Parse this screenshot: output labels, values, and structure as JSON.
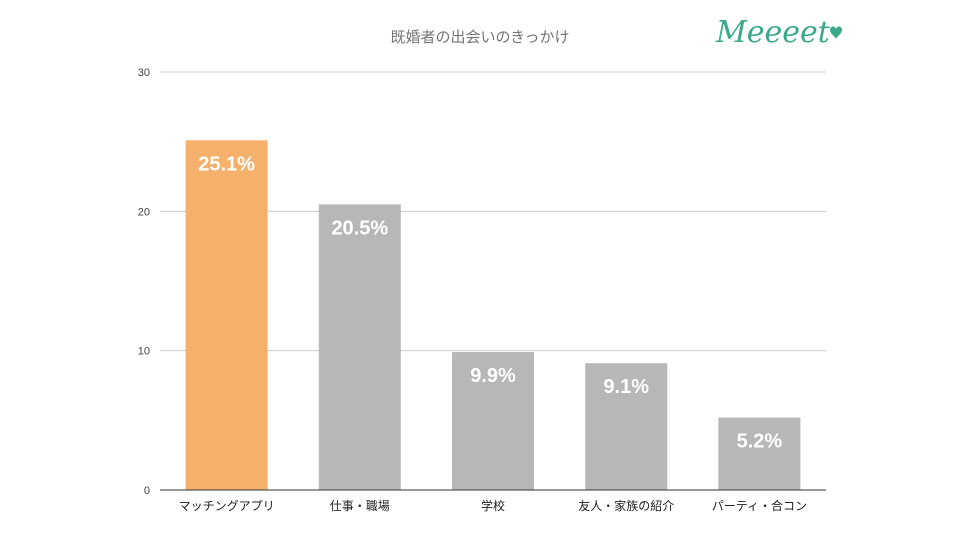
{
  "brand": {
    "logo_text": "Meeeet",
    "logo_color": "#3aa98b"
  },
  "chart_data": {
    "type": "bar",
    "title": "既婚者の出会いのきっかけ",
    "categories": [
      "マッチングアプリ",
      "仕事・職場",
      "学校",
      "友人・家族の紹介",
      "パーティ・合コン"
    ],
    "values": [
      25.1,
      20.5,
      9.9,
      9.1,
      5.2
    ],
    "data_labels": [
      "25.1%",
      "20.5%",
      "9.9%",
      "9.1%",
      "5.2%"
    ],
    "xlabel": "",
    "ylabel": "",
    "ylim": [
      0,
      30
    ],
    "yticks": [
      0,
      10,
      20,
      30
    ],
    "grid": true,
    "highlight_color": "#f5b16b",
    "bar_color": "#b7b7b7",
    "gridline_color": "#cccccc",
    "axis_color": "#333333"
  }
}
